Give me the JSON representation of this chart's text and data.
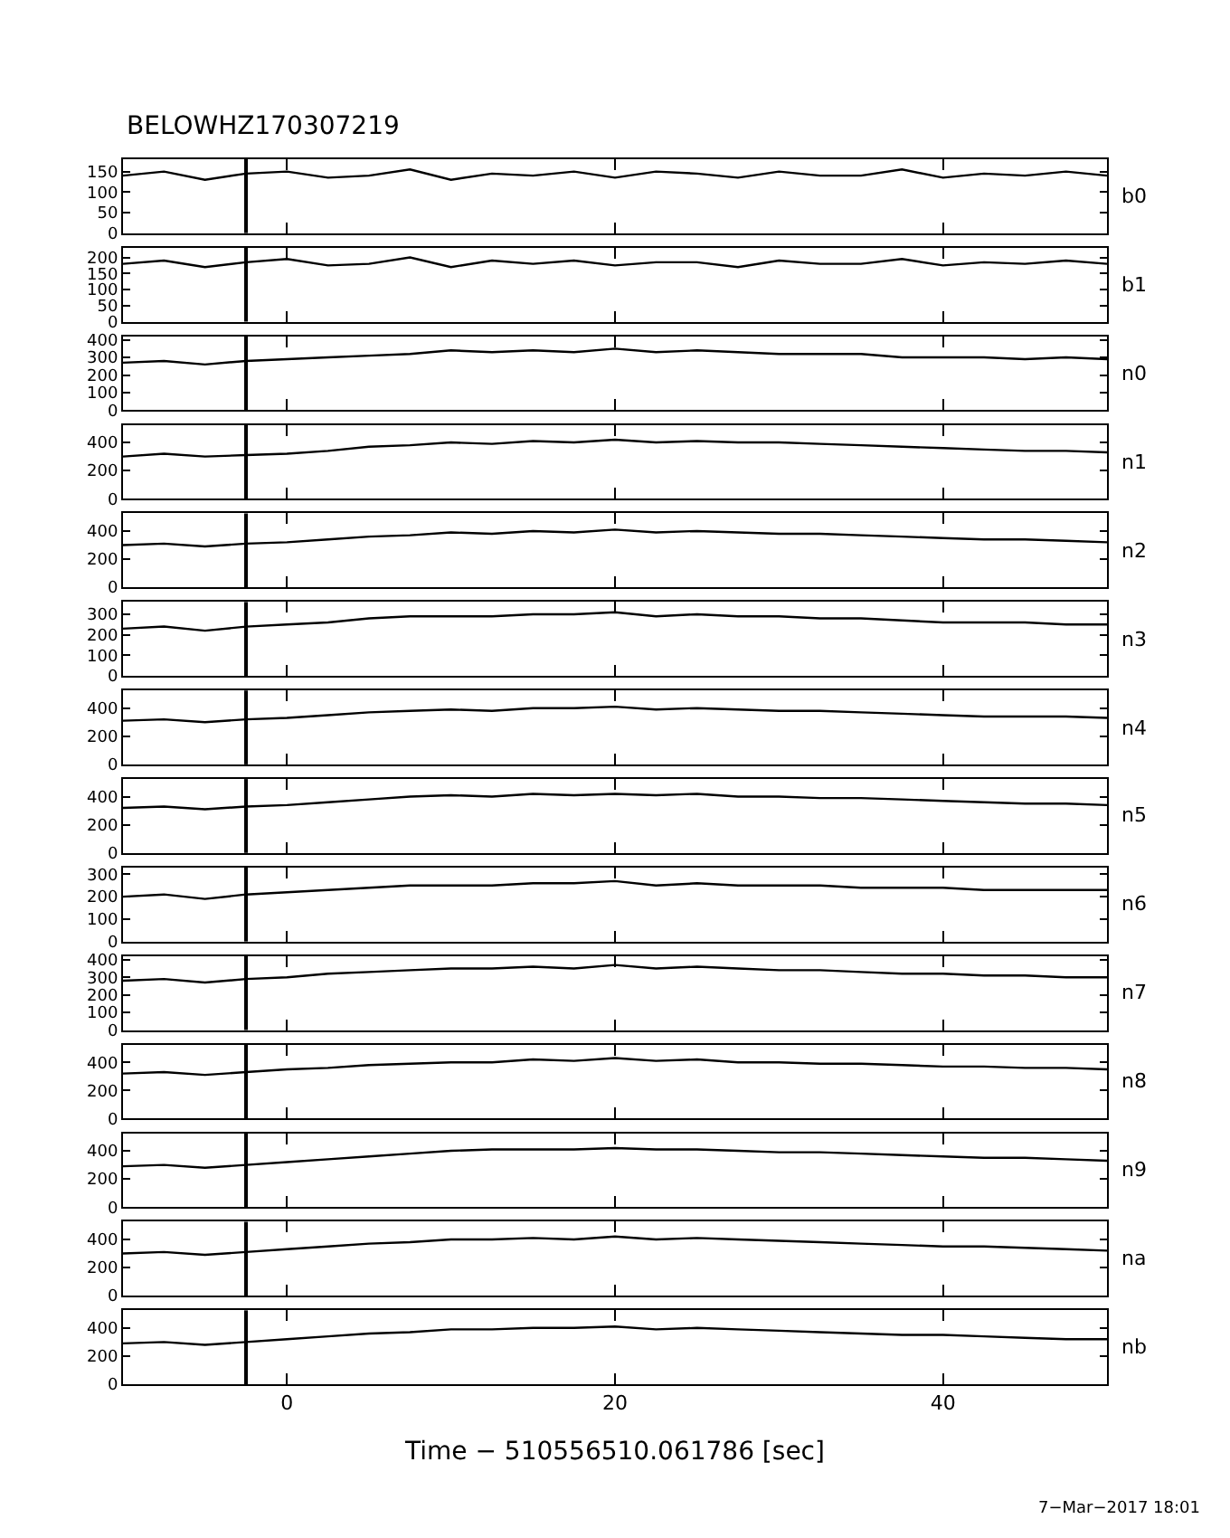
{
  "chart_data": [
    {
      "type": "line",
      "title": "BELOWHZ170307219",
      "x": [
        -10,
        -7.5,
        -5,
        -2.5,
        0,
        2.5,
        5,
        7.5,
        10,
        12.5,
        15,
        17.5,
        20,
        22.5,
        25,
        27.5,
        30,
        32.5,
        35,
        37.5,
        40,
        42.5,
        45,
        47.5,
        50
      ],
      "xlim": [
        -10,
        50
      ],
      "xticks": [
        0,
        20,
        40
      ],
      "ylim": [
        0,
        180
      ],
      "yticks": [
        0,
        50,
        100,
        150
      ],
      "tick_labels": "y",
      "legend": "right",
      "ref_lines": [
        {
          "axis": "x",
          "value": -2.5,
          "color": "#000000"
        }
      ],
      "series": [
        {
          "name": "b0",
          "color": "#000000",
          "values": [
            140,
            150,
            130,
            145,
            150,
            135,
            140,
            155,
            130,
            145,
            140,
            150,
            135,
            150,
            145,
            135,
            150,
            140,
            140,
            155,
            135,
            145,
            140,
            150,
            140
          ]
        }
      ]
    },
    {
      "type": "line",
      "x": [
        -10,
        -7.5,
        -5,
        -2.5,
        0,
        2.5,
        5,
        7.5,
        10,
        12.5,
        15,
        17.5,
        20,
        22.5,
        25,
        27.5,
        30,
        32.5,
        35,
        37.5,
        40,
        42.5,
        45,
        47.5,
        50
      ],
      "xlim": [
        -10,
        50
      ],
      "xticks": [
        0,
        20,
        40
      ],
      "ylim": [
        0,
        230
      ],
      "yticks": [
        0,
        50,
        100,
        150,
        200
      ],
      "tick_labels": "y",
      "legend": "right",
      "ref_lines": [
        {
          "axis": "x",
          "value": -2.5,
          "color": "#000000"
        }
      ],
      "series": [
        {
          "name": "b1",
          "color": "#000000",
          "values": [
            180,
            190,
            170,
            185,
            195,
            175,
            180,
            200,
            170,
            190,
            180,
            190,
            175,
            185,
            185,
            170,
            190,
            180,
            180,
            195,
            175,
            185,
            180,
            190,
            180
          ]
        }
      ]
    },
    {
      "type": "line",
      "x": [
        -10,
        -7.5,
        -5,
        -2.5,
        0,
        2.5,
        5,
        7.5,
        10,
        12.5,
        15,
        17.5,
        20,
        22.5,
        25,
        27.5,
        30,
        32.5,
        35,
        37.5,
        40,
        42.5,
        45,
        47.5,
        50
      ],
      "xlim": [
        -10,
        50
      ],
      "xticks": [
        0,
        20,
        40
      ],
      "ylim": [
        0,
        420
      ],
      "yticks": [
        0,
        100,
        200,
        300,
        400
      ],
      "tick_labels": "y",
      "legend": "right",
      "ref_lines": [
        {
          "axis": "x",
          "value": -2.5,
          "color": "#000000"
        }
      ],
      "series": [
        {
          "name": "n0",
          "color": "#000000",
          "values": [
            270,
            280,
            260,
            280,
            290,
            300,
            310,
            320,
            340,
            330,
            340,
            330,
            350,
            330,
            340,
            330,
            320,
            320,
            320,
            300,
            300,
            300,
            290,
            300,
            290
          ]
        }
      ]
    },
    {
      "type": "line",
      "x": [
        -10,
        -7.5,
        -5,
        -2.5,
        0,
        2.5,
        5,
        7.5,
        10,
        12.5,
        15,
        17.5,
        20,
        22.5,
        25,
        27.5,
        30,
        32.5,
        35,
        37.5,
        40,
        42.5,
        45,
        47.5,
        50
      ],
      "xlim": [
        -10,
        50
      ],
      "xticks": [
        0,
        20,
        40
      ],
      "ylim": [
        0,
        525
      ],
      "yticks": [
        0,
        200,
        400
      ],
      "tick_labels": "y",
      "legend": "right",
      "ref_lines": [
        {
          "axis": "x",
          "value": -2.5,
          "color": "#000000"
        }
      ],
      "series": [
        {
          "name": "n1",
          "color": "#000000",
          "values": [
            300,
            320,
            300,
            310,
            320,
            340,
            370,
            380,
            400,
            390,
            410,
            400,
            420,
            400,
            410,
            400,
            400,
            390,
            380,
            370,
            360,
            350,
            340,
            340,
            330
          ]
        }
      ]
    },
    {
      "type": "line",
      "x": [
        -10,
        -7.5,
        -5,
        -2.5,
        0,
        2.5,
        5,
        7.5,
        10,
        12.5,
        15,
        17.5,
        20,
        22.5,
        25,
        27.5,
        30,
        32.5,
        35,
        37.5,
        40,
        42.5,
        45,
        47.5,
        50
      ],
      "xlim": [
        -10,
        50
      ],
      "xticks": [
        0,
        20,
        40
      ],
      "ylim": [
        0,
        525
      ],
      "yticks": [
        0,
        200,
        400
      ],
      "tick_labels": "y",
      "legend": "right",
      "ref_lines": [
        {
          "axis": "x",
          "value": -2.5,
          "color": "#000000"
        }
      ],
      "series": [
        {
          "name": "n2",
          "color": "#000000",
          "values": [
            300,
            310,
            290,
            310,
            320,
            340,
            360,
            370,
            390,
            380,
            400,
            390,
            410,
            390,
            400,
            390,
            380,
            380,
            370,
            360,
            350,
            340,
            340,
            330,
            320
          ]
        }
      ]
    },
    {
      "type": "line",
      "x": [
        -10,
        -7.5,
        -5,
        -2.5,
        0,
        2.5,
        5,
        7.5,
        10,
        12.5,
        15,
        17.5,
        20,
        22.5,
        25,
        27.5,
        30,
        32.5,
        35,
        37.5,
        40,
        42.5,
        45,
        47.5,
        50
      ],
      "xlim": [
        -10,
        50
      ],
      "xticks": [
        0,
        20,
        40
      ],
      "ylim": [
        0,
        360
      ],
      "yticks": [
        0,
        100,
        200,
        300
      ],
      "tick_labels": "y",
      "legend": "right",
      "ref_lines": [
        {
          "axis": "x",
          "value": -2.5,
          "color": "#000000"
        }
      ],
      "series": [
        {
          "name": "n3",
          "color": "#000000",
          "values": [
            230,
            240,
            220,
            240,
            250,
            260,
            280,
            290,
            290,
            290,
            300,
            300,
            310,
            290,
            300,
            290,
            290,
            280,
            280,
            270,
            260,
            260,
            260,
            250,
            250
          ]
        }
      ]
    },
    {
      "type": "line",
      "x": [
        -10,
        -7.5,
        -5,
        -2.5,
        0,
        2.5,
        5,
        7.5,
        10,
        12.5,
        15,
        17.5,
        20,
        22.5,
        25,
        27.5,
        30,
        32.5,
        35,
        37.5,
        40,
        42.5,
        45,
        47.5,
        50
      ],
      "xlim": [
        -10,
        50
      ],
      "xticks": [
        0,
        20,
        40
      ],
      "ylim": [
        0,
        525
      ],
      "yticks": [
        0,
        200,
        400
      ],
      "tick_labels": "y",
      "legend": "right",
      "ref_lines": [
        {
          "axis": "x",
          "value": -2.5,
          "color": "#000000"
        }
      ],
      "series": [
        {
          "name": "n4",
          "color": "#000000",
          "values": [
            310,
            320,
            300,
            320,
            330,
            350,
            370,
            380,
            390,
            380,
            400,
            400,
            410,
            390,
            400,
            390,
            380,
            380,
            370,
            360,
            350,
            340,
            340,
            340,
            330
          ]
        }
      ]
    },
    {
      "type": "line",
      "x": [
        -10,
        -7.5,
        -5,
        -2.5,
        0,
        2.5,
        5,
        7.5,
        10,
        12.5,
        15,
        17.5,
        20,
        22.5,
        25,
        27.5,
        30,
        32.5,
        35,
        37.5,
        40,
        42.5,
        45,
        47.5,
        50
      ],
      "xlim": [
        -10,
        50
      ],
      "xticks": [
        0,
        20,
        40
      ],
      "ylim": [
        0,
        525
      ],
      "yticks": [
        0,
        200,
        400
      ],
      "tick_labels": "y",
      "legend": "right",
      "ref_lines": [
        {
          "axis": "x",
          "value": -2.5,
          "color": "#000000"
        }
      ],
      "series": [
        {
          "name": "n5",
          "color": "#000000",
          "values": [
            320,
            330,
            310,
            330,
            340,
            360,
            380,
            400,
            410,
            400,
            420,
            410,
            420,
            410,
            420,
            400,
            400,
            390,
            390,
            380,
            370,
            360,
            350,
            350,
            340
          ]
        }
      ]
    },
    {
      "type": "line",
      "x": [
        -10,
        -7.5,
        -5,
        -2.5,
        0,
        2.5,
        5,
        7.5,
        10,
        12.5,
        15,
        17.5,
        20,
        22.5,
        25,
        27.5,
        30,
        32.5,
        35,
        37.5,
        40,
        42.5,
        45,
        47.5,
        50
      ],
      "xlim": [
        -10,
        50
      ],
      "xticks": [
        0,
        20,
        40
      ],
      "ylim": [
        0,
        330
      ],
      "yticks": [
        0,
        100,
        200,
        300
      ],
      "tick_labels": "y",
      "legend": "right",
      "ref_lines": [
        {
          "axis": "x",
          "value": -2.5,
          "color": "#000000"
        }
      ],
      "series": [
        {
          "name": "n6",
          "color": "#000000",
          "values": [
            200,
            210,
            190,
            210,
            220,
            230,
            240,
            250,
            250,
            250,
            260,
            260,
            270,
            250,
            260,
            250,
            250,
            250,
            240,
            240,
            240,
            230,
            230,
            230,
            230
          ]
        }
      ]
    },
    {
      "type": "line",
      "x": [
        -10,
        -7.5,
        -5,
        -2.5,
        0,
        2.5,
        5,
        7.5,
        10,
        12.5,
        15,
        17.5,
        20,
        22.5,
        25,
        27.5,
        30,
        32.5,
        35,
        37.5,
        40,
        42.5,
        45,
        47.5,
        50
      ],
      "xlim": [
        -10,
        50
      ],
      "xticks": [
        0,
        20,
        40
      ],
      "ylim": [
        0,
        420
      ],
      "yticks": [
        0,
        100,
        200,
        300,
        400
      ],
      "tick_labels": "y",
      "legend": "right",
      "ref_lines": [
        {
          "axis": "x",
          "value": -2.5,
          "color": "#000000"
        }
      ],
      "series": [
        {
          "name": "n7",
          "color": "#000000",
          "values": [
            280,
            290,
            270,
            290,
            300,
            320,
            330,
            340,
            350,
            350,
            360,
            350,
            370,
            350,
            360,
            350,
            340,
            340,
            330,
            320,
            320,
            310,
            310,
            300,
            300
          ]
        }
      ]
    },
    {
      "type": "line",
      "x": [
        -10,
        -7.5,
        -5,
        -2.5,
        0,
        2.5,
        5,
        7.5,
        10,
        12.5,
        15,
        17.5,
        20,
        22.5,
        25,
        27.5,
        30,
        32.5,
        35,
        37.5,
        40,
        42.5,
        45,
        47.5,
        50
      ],
      "xlim": [
        -10,
        50
      ],
      "xticks": [
        0,
        20,
        40
      ],
      "ylim": [
        0,
        525
      ],
      "yticks": [
        0,
        200,
        400
      ],
      "tick_labels": "y",
      "legend": "right",
      "ref_lines": [
        {
          "axis": "x",
          "value": -2.5,
          "color": "#000000"
        }
      ],
      "series": [
        {
          "name": "n8",
          "color": "#000000",
          "values": [
            320,
            330,
            310,
            330,
            350,
            360,
            380,
            390,
            400,
            400,
            420,
            410,
            430,
            410,
            420,
            400,
            400,
            390,
            390,
            380,
            370,
            370,
            360,
            360,
            350
          ]
        }
      ]
    },
    {
      "type": "line",
      "x": [
        -10,
        -7.5,
        -5,
        -2.5,
        0,
        2.5,
        5,
        7.5,
        10,
        12.5,
        15,
        17.5,
        20,
        22.5,
        25,
        27.5,
        30,
        32.5,
        35,
        37.5,
        40,
        42.5,
        45,
        47.5,
        50
      ],
      "xlim": [
        -10,
        50
      ],
      "xticks": [
        0,
        20,
        40
      ],
      "ylim": [
        0,
        525
      ],
      "yticks": [
        0,
        200,
        400
      ],
      "tick_labels": "y",
      "legend": "right",
      "ref_lines": [
        {
          "axis": "x",
          "value": -2.5,
          "color": "#000000"
        }
      ],
      "series": [
        {
          "name": "n9",
          "color": "#000000",
          "values": [
            290,
            300,
            280,
            300,
            320,
            340,
            360,
            380,
            400,
            410,
            410,
            410,
            420,
            410,
            410,
            400,
            390,
            390,
            380,
            370,
            360,
            350,
            350,
            340,
            330
          ]
        }
      ]
    },
    {
      "type": "line",
      "x": [
        -10,
        -7.5,
        -5,
        -2.5,
        0,
        2.5,
        5,
        7.5,
        10,
        12.5,
        15,
        17.5,
        20,
        22.5,
        25,
        27.5,
        30,
        32.5,
        35,
        37.5,
        40,
        42.5,
        45,
        47.5,
        50
      ],
      "xlim": [
        -10,
        50
      ],
      "xticks": [
        0,
        20,
        40
      ],
      "ylim": [
        0,
        525
      ],
      "yticks": [
        0,
        200,
        400
      ],
      "tick_labels": "y",
      "legend": "right",
      "ref_lines": [
        {
          "axis": "x",
          "value": -2.5,
          "color": "#000000"
        }
      ],
      "series": [
        {
          "name": "na",
          "color": "#000000",
          "values": [
            300,
            310,
            290,
            310,
            330,
            350,
            370,
            380,
            400,
            400,
            410,
            400,
            420,
            400,
            410,
            400,
            390,
            380,
            370,
            360,
            350,
            350,
            340,
            330,
            320
          ]
        }
      ]
    },
    {
      "type": "line",
      "xlabel": "Time − 510556510.061786 [sec]",
      "annotations": [
        "7−Mar−2017 18:01"
      ],
      "x": [
        -10,
        -7.5,
        -5,
        -2.5,
        0,
        2.5,
        5,
        7.5,
        10,
        12.5,
        15,
        17.5,
        20,
        22.5,
        25,
        27.5,
        30,
        32.5,
        35,
        37.5,
        40,
        42.5,
        45,
        47.5,
        50
      ],
      "xlim": [
        -10,
        50
      ],
      "xticks": [
        0,
        20,
        40
      ],
      "ylim": [
        0,
        525
      ],
      "yticks": [
        0,
        200,
        400
      ],
      "legend": "right",
      "ref_lines": [
        {
          "axis": "x",
          "value": -2.5,
          "color": "#000000"
        }
      ],
      "series": [
        {
          "name": "nb",
          "color": "#000000",
          "values": [
            290,
            300,
            280,
            300,
            320,
            340,
            360,
            370,
            390,
            390,
            400,
            400,
            410,
            390,
            400,
            390,
            380,
            370,
            360,
            350,
            350,
            340,
            330,
            320,
            320
          ]
        }
      ]
    }
  ]
}
